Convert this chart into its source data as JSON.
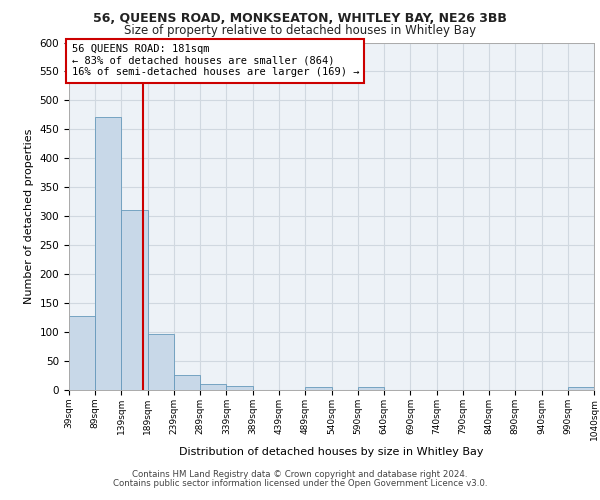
{
  "title_line1": "56, QUEENS ROAD, MONKSEATON, WHITLEY BAY, NE26 3BB",
  "title_line2": "Size of property relative to detached houses in Whitley Bay",
  "xlabel": "Distribution of detached houses by size in Whitley Bay",
  "ylabel": "Number of detached properties",
  "footer_line1": "Contains HM Land Registry data © Crown copyright and database right 2024.",
  "footer_line2": "Contains public sector information licensed under the Open Government Licence v3.0.",
  "annotation_title": "56 QUEENS ROAD: 181sqm",
  "annotation_line2": "← 83% of detached houses are smaller (864)",
  "annotation_line3": "16% of semi-detached houses are larger (169) →",
  "property_size": 181,
  "vline_x": 181,
  "bar_edges": [
    39,
    89,
    139,
    189,
    239,
    289,
    339,
    389,
    439,
    489,
    540,
    590,
    640,
    690,
    740,
    790,
    840,
    890,
    940,
    990,
    1040
  ],
  "bar_values": [
    128,
    471,
    311,
    96,
    26,
    11,
    7,
    0,
    0,
    6,
    0,
    6,
    0,
    0,
    0,
    0,
    0,
    0,
    0,
    6
  ],
  "bar_color": "#c8d8e8",
  "bar_edge_color": "#6699bb",
  "vline_color": "#cc0000",
  "annotation_box_color": "#cc0000",
  "grid_color": "#d0d8e0",
  "background_color": "#edf2f7",
  "ylim": [
    0,
    600
  ],
  "yticks": [
    0,
    50,
    100,
    150,
    200,
    250,
    300,
    350,
    400,
    450,
    500,
    550,
    600
  ]
}
